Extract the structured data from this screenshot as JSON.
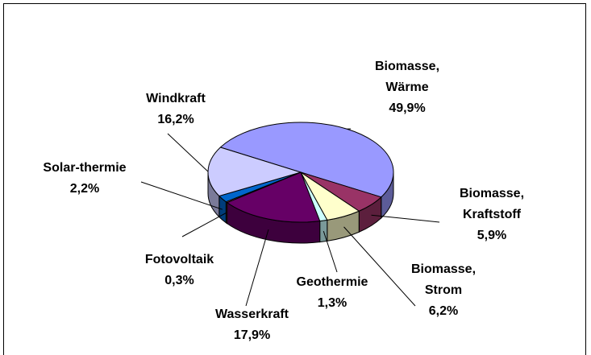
{
  "chart_data": {
    "type": "pie",
    "categories": [
      "Biomasse, Wärme",
      "Biomasse, Kraftstoff",
      "Biomasse, Strom",
      "Geothermie",
      "Wasserkraft",
      "Fotovoltaik",
      "Solar-thermie",
      "Windkraft"
    ],
    "values": [
      49.9,
      5.9,
      6.2,
      1.3,
      17.9,
      0.3,
      2.2,
      16.2
    ],
    "value_labels": [
      "49,9%",
      "5,9%",
      "6,2%",
      "1,3%",
      "17,9%",
      "0,3%",
      "2,2%",
      "16,2%"
    ],
    "colors": [
      "#9999ff",
      "#993366",
      "#ffffcc",
      "#ccffff",
      "#660066",
      "#ff8080",
      "#0066cc",
      "#ccccff"
    ]
  }
}
